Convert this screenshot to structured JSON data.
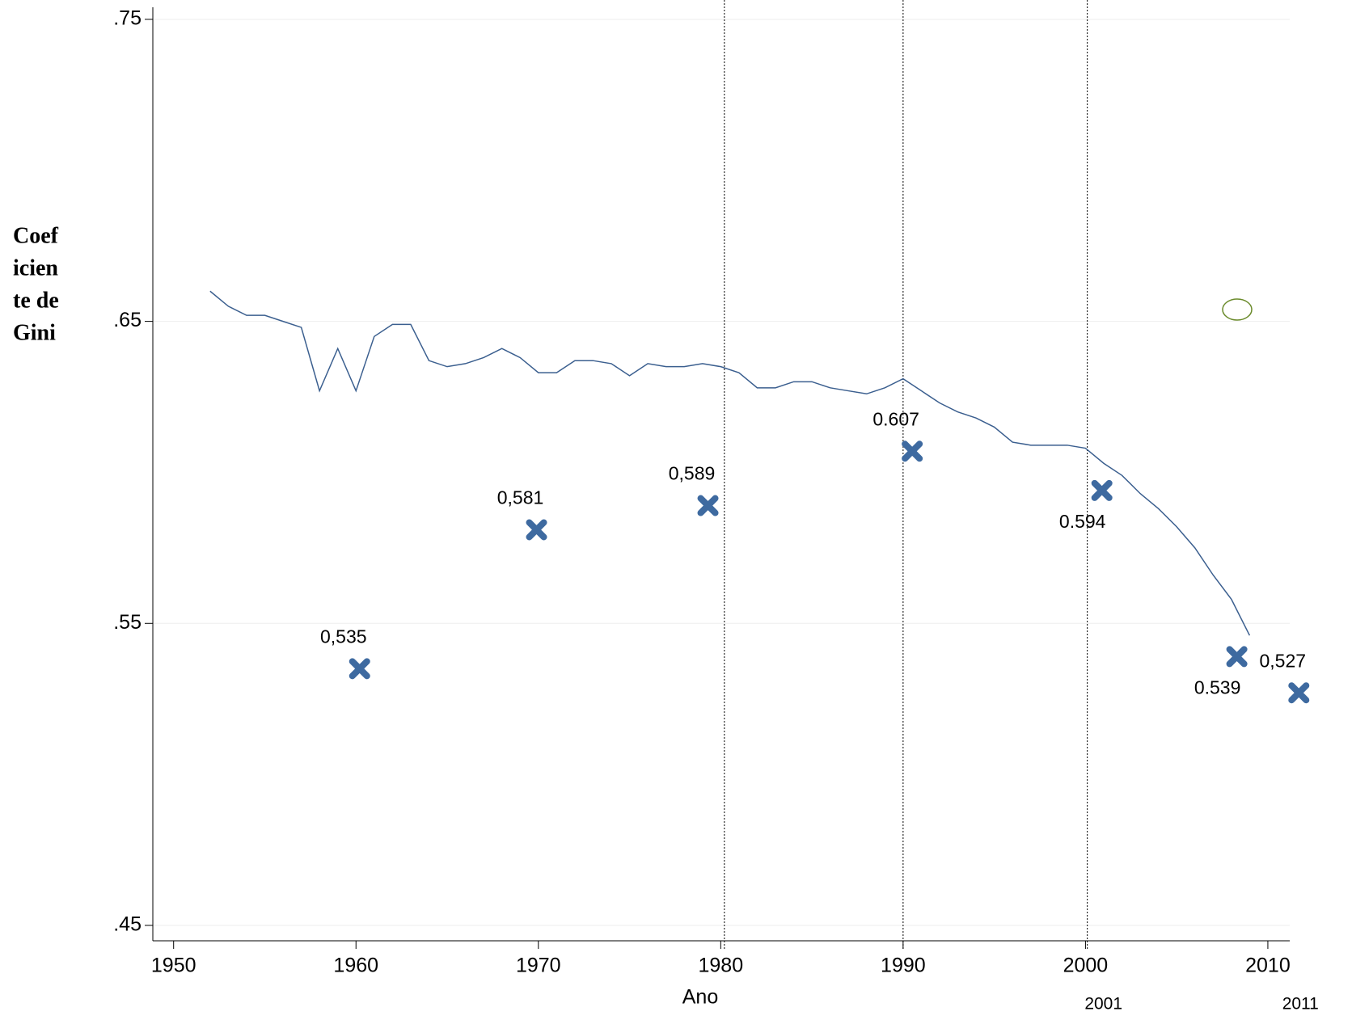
{
  "chart_data": {
    "type": "line",
    "ylabel": [
      "Coef",
      "icien",
      "te de",
      "Gini"
    ],
    "xlabel": "Ano",
    "xlim": [
      1948.86,
      2011.2
    ],
    "xticks": [
      1950,
      1960,
      1970,
      1980,
      1990,
      2000,
      2010
    ],
    "ylim": [
      0.4449,
      0.754
    ],
    "yticks": [
      {
        "value": 0.75,
        "label": ".75"
      },
      {
        "value": 0.65,
        "label": ".65"
      },
      {
        "value": 0.55,
        "label": ".55"
      },
      {
        "value": 0.45,
        "label": ".45"
      }
    ],
    "grid": true,
    "vlines": [
      1980.2,
      1990,
      2000.1
    ],
    "annotations": [
      "2001",
      "2011"
    ],
    "series": [
      {
        "type": "line",
        "color": "#3b5f8f",
        "x": [
          1952,
          1953,
          1954,
          1955,
          1956,
          1957,
          1958,
          1959,
          1960,
          1961,
          1962,
          1963,
          1964,
          1965,
          1966,
          1967,
          1968,
          1969,
          1970,
          1971,
          1972,
          1973,
          1974,
          1975,
          1976,
          1977,
          1978,
          1979,
          1980,
          1981,
          1982,
          1983,
          1984,
          1985,
          1986,
          1987,
          1988,
          1989,
          1990,
          1991,
          1992,
          1993,
          1994,
          1995,
          1996,
          1997,
          1998,
          1999,
          2000,
          2001,
          2002,
          2003,
          2004,
          2005,
          2006,
          2007,
          2008,
          2009
        ],
        "values": [
          0.66,
          0.655,
          0.652,
          0.652,
          0.65,
          0.648,
          0.627,
          0.641,
          0.627,
          0.645,
          0.649,
          0.649,
          0.637,
          0.635,
          0.636,
          0.638,
          0.641,
          0.638,
          0.633,
          0.633,
          0.637,
          0.637,
          0.636,
          0.632,
          0.636,
          0.635,
          0.635,
          0.636,
          0.635,
          0.633,
          0.628,
          0.628,
          0.63,
          0.63,
          0.628,
          0.627,
          0.626,
          0.628,
          0.631,
          0.627,
          0.623,
          0.62,
          0.618,
          0.615,
          0.61,
          0.609,
          0.609,
          0.609,
          0.608,
          0.603,
          0.599,
          0.593,
          0.588,
          0.582,
          0.575,
          0.566,
          0.558,
          0.546
        ]
      },
      {
        "type": "scatter",
        "color": "#3e6aa0",
        "x": [
          1960.2,
          1969.9,
          1979.3,
          1990.5,
          2000.9,
          2008.3,
          2011.7
        ],
        "values": [
          0.535,
          0.581,
          0.589,
          0.607,
          0.594,
          0.539,
          0.527
        ],
        "value_labels": [
          "0,535",
          "0,581",
          "0,589",
          "0.607",
          "0.594",
          "0.539",
          "0,527"
        ]
      }
    ]
  }
}
